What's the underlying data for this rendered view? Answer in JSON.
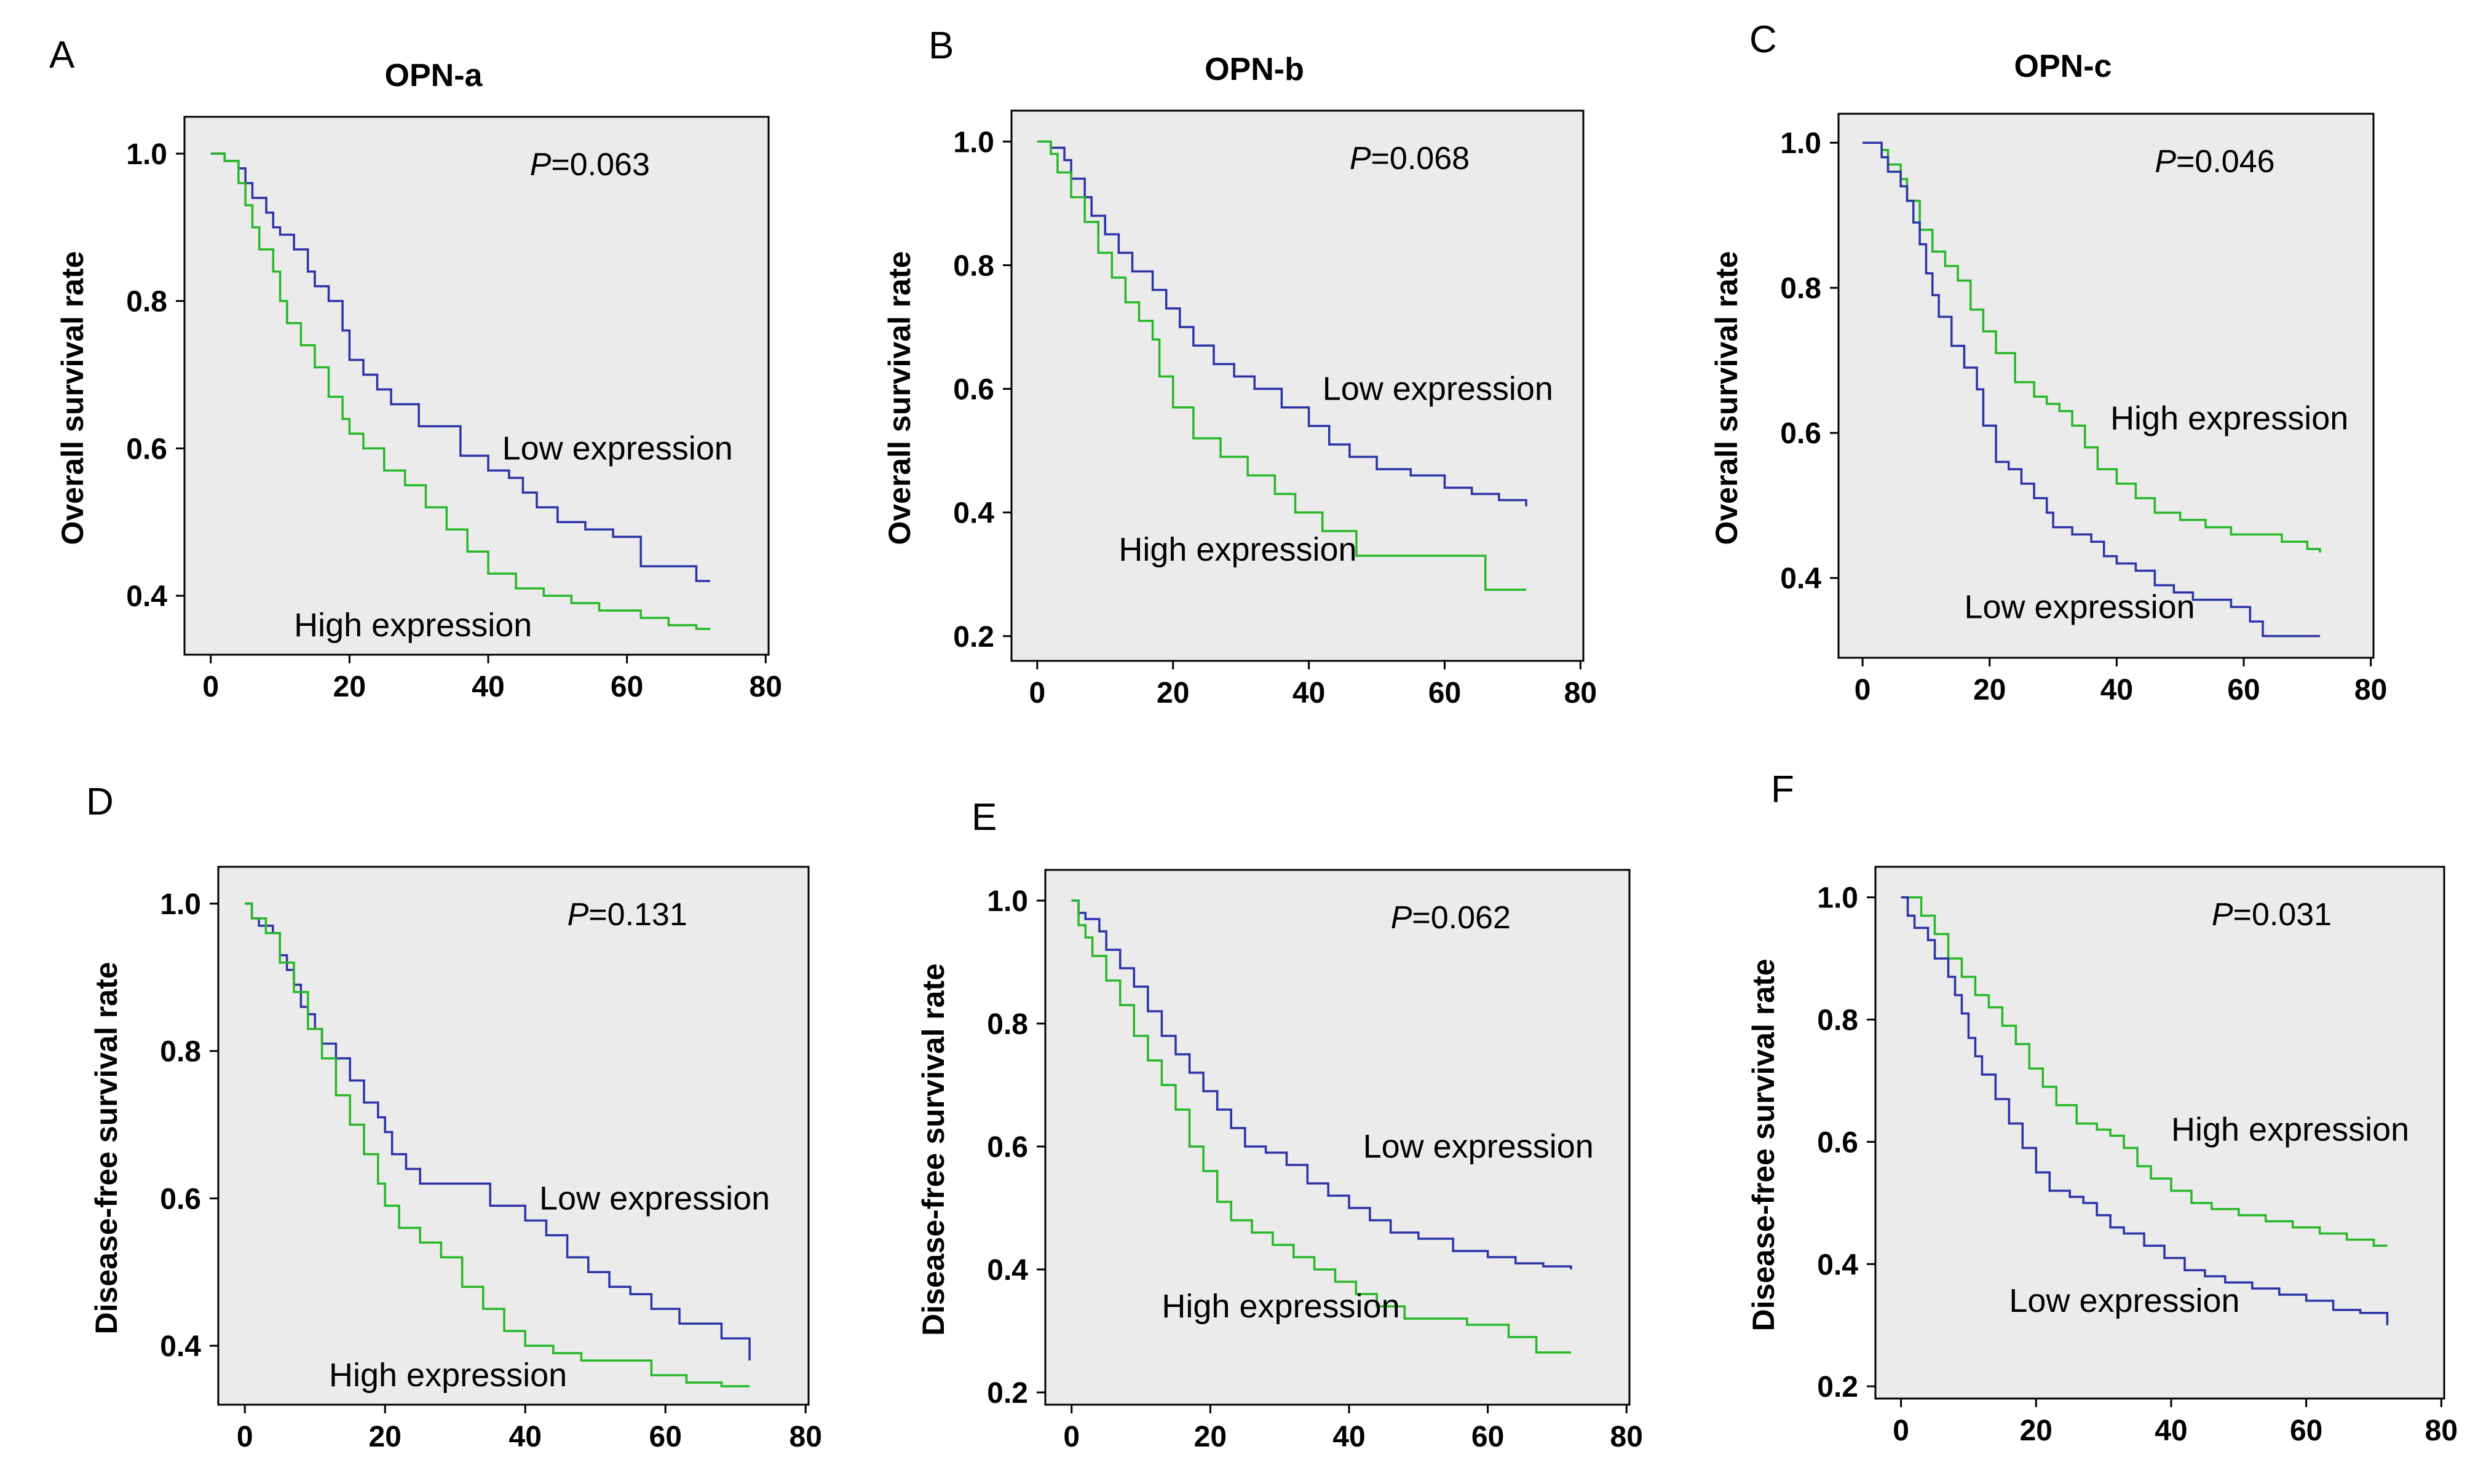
{
  "colors": {
    "low_curve": "#2a33a8",
    "high_curve": "#26b826",
    "plot_background": "#ebebeb"
  },
  "chart_data": [
    {
      "panel": "A",
      "title": "OPN-a",
      "type": "line",
      "ylabel": "Overall survival rate",
      "xlim": [
        0,
        80
      ],
      "ylim": [
        0.32,
        1.05
      ],
      "xticks": [
        "0",
        "20",
        "40",
        "60",
        "80"
      ],
      "yticks": [
        "0.4",
        "0.6",
        "0.8",
        "1.0"
      ],
      "xtick_values": [
        0,
        20,
        40,
        60,
        80
      ],
      "ytick_values": [
        0.4,
        0.6,
        0.8,
        1.0
      ],
      "p_value": "=0.063",
      "series": [
        {
          "name": "Low expression",
          "x": [
            0,
            1,
            2,
            4,
            5,
            6,
            8,
            9,
            10,
            12,
            14,
            15,
            17,
            19,
            20,
            22,
            24,
            26,
            30,
            36,
            40,
            43,
            45,
            47,
            50,
            54,
            58,
            62,
            67,
            70,
            72
          ],
          "y": [
            1.0,
            1.0,
            0.99,
            0.98,
            0.96,
            0.94,
            0.92,
            0.9,
            0.89,
            0.87,
            0.84,
            0.82,
            0.8,
            0.76,
            0.72,
            0.7,
            0.68,
            0.66,
            0.63,
            0.59,
            0.57,
            0.56,
            0.54,
            0.52,
            0.5,
            0.49,
            0.48,
            0.44,
            0.44,
            0.42,
            0.42
          ]
        },
        {
          "name": "High expression",
          "x": [
            0,
            1,
            2,
            4,
            5,
            6,
            7,
            9,
            10,
            11,
            13,
            15,
            17,
            19,
            20,
            22,
            25,
            28,
            31,
            34,
            37,
            40,
            44,
            48,
            52,
            56,
            62,
            66,
            70,
            72
          ],
          "y": [
            1.0,
            1.0,
            0.99,
            0.96,
            0.93,
            0.9,
            0.87,
            0.84,
            0.8,
            0.77,
            0.74,
            0.71,
            0.67,
            0.64,
            0.62,
            0.6,
            0.57,
            0.55,
            0.52,
            0.49,
            0.46,
            0.43,
            0.41,
            0.4,
            0.39,
            0.38,
            0.37,
            0.36,
            0.355,
            0.355
          ]
        }
      ],
      "annotations": [
        {
          "text": "Low expression",
          "x": 42,
          "y": 0.6
        },
        {
          "text": "High expression",
          "x": 12,
          "y": 0.36
        }
      ]
    },
    {
      "panel": "B",
      "title": "OPN-b",
      "type": "line",
      "ylabel": "Overall survival rate",
      "xlim": [
        0,
        80
      ],
      "ylim": [
        0.16,
        1.05
      ],
      "xticks": [
        "0",
        "20",
        "40",
        "60",
        "80"
      ],
      "yticks": [
        "0.2",
        "0.4",
        "0.6",
        "0.8",
        "1.0"
      ],
      "xtick_values": [
        0,
        20,
        40,
        60,
        80
      ],
      "ytick_values": [
        0.2,
        0.4,
        0.6,
        0.8,
        1.0
      ],
      "p_value": "=0.068",
      "series": [
        {
          "name": "Low expression",
          "x": [
            0,
            1,
            2,
            4,
            5,
            7,
            8,
            10,
            12,
            14,
            17,
            19,
            21,
            23,
            26,
            29,
            32,
            36,
            40,
            43,
            46,
            50,
            55,
            60,
            64,
            68,
            72
          ],
          "y": [
            1.0,
            1.0,
            0.99,
            0.97,
            0.94,
            0.91,
            0.88,
            0.85,
            0.82,
            0.79,
            0.76,
            0.73,
            0.7,
            0.67,
            0.64,
            0.62,
            0.6,
            0.57,
            0.54,
            0.51,
            0.49,
            0.47,
            0.46,
            0.44,
            0.43,
            0.42,
            0.41
          ]
        },
        {
          "name": "High expression",
          "x": [
            0,
            1,
            2,
            3,
            5,
            7,
            9,
            11,
            13,
            15,
            17,
            18,
            20,
            23,
            27,
            31,
            35,
            38,
            42,
            47,
            54,
            61,
            66,
            72
          ],
          "y": [
            1.0,
            1.0,
            0.98,
            0.95,
            0.91,
            0.87,
            0.82,
            0.78,
            0.74,
            0.71,
            0.68,
            0.62,
            0.57,
            0.52,
            0.49,
            0.46,
            0.43,
            0.4,
            0.37,
            0.33,
            0.33,
            0.33,
            0.275,
            0.275
          ]
        }
      ],
      "annotations": [
        {
          "text": "Low expression",
          "x": 42,
          "y": 0.6
        },
        {
          "text": "High expression",
          "x": 12,
          "y": 0.34
        }
      ]
    },
    {
      "panel": "C",
      "title": "OPN-c",
      "type": "line",
      "ylabel": "Overall survival rate",
      "xlim": [
        0,
        80
      ],
      "ylim": [
        0.29,
        1.04
      ],
      "xticks": [
        "0",
        "20",
        "40",
        "60",
        "80"
      ],
      "yticks": [
        "0.4",
        "0.6",
        "0.8",
        "1.0"
      ],
      "xtick_values": [
        0,
        20,
        40,
        60,
        80
      ],
      "ytick_values": [
        0.4,
        0.6,
        0.8,
        1.0
      ],
      "p_value": "=0.046",
      "series": [
        {
          "name": "High expression",
          "x": [
            0,
            1,
            3,
            4,
            6,
            7,
            9,
            11,
            13,
            15,
            17,
            19,
            21,
            24,
            27,
            29,
            31,
            33,
            35,
            37,
            40,
            43,
            46,
            50,
            54,
            58,
            62,
            66,
            70,
            72
          ],
          "y": [
            1.0,
            1.0,
            0.99,
            0.97,
            0.95,
            0.92,
            0.88,
            0.85,
            0.83,
            0.81,
            0.77,
            0.74,
            0.71,
            0.67,
            0.65,
            0.64,
            0.63,
            0.61,
            0.58,
            0.55,
            0.53,
            0.51,
            0.49,
            0.48,
            0.47,
            0.46,
            0.46,
            0.45,
            0.44,
            0.435
          ]
        },
        {
          "name": "Low expression",
          "x": [
            0,
            1,
            3,
            4,
            6,
            7,
            8,
            9,
            10,
            11,
            12,
            14,
            16,
            18,
            19,
            21,
            23,
            25,
            27,
            29,
            30,
            33,
            36,
            38,
            40,
            43,
            46,
            49,
            52,
            55,
            58,
            61,
            63,
            66,
            70,
            72
          ],
          "y": [
            1.0,
            1.0,
            0.98,
            0.96,
            0.94,
            0.92,
            0.89,
            0.86,
            0.82,
            0.79,
            0.76,
            0.72,
            0.69,
            0.66,
            0.61,
            0.56,
            0.55,
            0.53,
            0.51,
            0.49,
            0.47,
            0.46,
            0.45,
            0.43,
            0.42,
            0.41,
            0.39,
            0.38,
            0.37,
            0.37,
            0.36,
            0.34,
            0.32,
            0.32,
            0.32,
            0.32
          ]
        }
      ],
      "annotations": [
        {
          "text": "High expression",
          "x": 39,
          "y": 0.62
        },
        {
          "text": "Low expression",
          "x": 16,
          "y": 0.36
        }
      ]
    },
    {
      "panel": "D",
      "type": "line",
      "ylabel": "Disease-free survival rate",
      "xlim": [
        0,
        80
      ],
      "ylim": [
        0.32,
        1.05
      ],
      "xticks": [
        "0",
        "20",
        "40",
        "60",
        "80"
      ],
      "yticks": [
        "0.4",
        "0.6",
        "0.8",
        "1.0"
      ],
      "xtick_values": [
        0,
        20,
        40,
        60,
        80
      ],
      "ytick_values": [
        0.4,
        0.6,
        0.8,
        1.0
      ],
      "p_value": "=0.131",
      "series": [
        {
          "name": "Low expression",
          "x": [
            0,
            1,
            2,
            4,
            5,
            6,
            7,
            8,
            9,
            10,
            11,
            12,
            13,
            15,
            17,
            19,
            20,
            21,
            23,
            25,
            30,
            35,
            40,
            43,
            46,
            49,
            52,
            55,
            58,
            62,
            68,
            72
          ],
          "y": [
            1.0,
            0.98,
            0.97,
            0.96,
            0.93,
            0.91,
            0.89,
            0.86,
            0.85,
            0.83,
            0.81,
            0.81,
            0.79,
            0.76,
            0.73,
            0.71,
            0.69,
            0.66,
            0.64,
            0.62,
            0.62,
            0.59,
            0.57,
            0.55,
            0.52,
            0.5,
            0.48,
            0.47,
            0.45,
            0.43,
            0.41,
            0.38
          ]
        },
        {
          "name": "High expression",
          "x": [
            0,
            1,
            3,
            5,
            7,
            9,
            11,
            13,
            15,
            17,
            19,
            20,
            22,
            25,
            28,
            31,
            34,
            37,
            40,
            44,
            48,
            52,
            58,
            63,
            68,
            72
          ],
          "y": [
            1.0,
            0.98,
            0.96,
            0.92,
            0.88,
            0.83,
            0.79,
            0.74,
            0.7,
            0.66,
            0.62,
            0.59,
            0.56,
            0.54,
            0.52,
            0.48,
            0.45,
            0.42,
            0.4,
            0.39,
            0.38,
            0.38,
            0.36,
            0.35,
            0.345,
            0.345
          ]
        }
      ],
      "annotations": [
        {
          "text": "Low expression",
          "x": 42,
          "y": 0.6
        },
        {
          "text": "High expression",
          "x": 12,
          "y": 0.36
        }
      ]
    },
    {
      "panel": "E",
      "type": "line",
      "ylabel": "Disease-free survival rate",
      "xlim": [
        0,
        80
      ],
      "ylim": [
        0.18,
        1.05
      ],
      "xticks": [
        "0",
        "20",
        "40",
        "60",
        "80"
      ],
      "yticks": [
        "0.2",
        "0.4",
        "0.6",
        "0.8",
        "1.0"
      ],
      "xtick_values": [
        0,
        20,
        40,
        60,
        80
      ],
      "ytick_values": [
        0.2,
        0.4,
        0.6,
        0.8,
        1.0
      ],
      "p_value": "=0.062",
      "series": [
        {
          "name": "Low expression",
          "x": [
            0,
            1,
            2,
            4,
            5,
            7,
            9,
            11,
            13,
            15,
            17,
            19,
            21,
            23,
            25,
            28,
            31,
            34,
            37,
            40,
            43,
            46,
            50,
            55,
            60,
            64,
            68,
            72
          ],
          "y": [
            1.0,
            0.98,
            0.97,
            0.95,
            0.92,
            0.89,
            0.86,
            0.82,
            0.78,
            0.75,
            0.72,
            0.69,
            0.66,
            0.63,
            0.6,
            0.59,
            0.57,
            0.54,
            0.52,
            0.5,
            0.48,
            0.46,
            0.45,
            0.43,
            0.42,
            0.41,
            0.405,
            0.4
          ]
        },
        {
          "name": "High expression",
          "x": [
            0,
            1,
            2,
            3,
            5,
            7,
            9,
            11,
            13,
            15,
            17,
            19,
            21,
            23,
            26,
            29,
            32,
            35,
            38,
            41,
            44,
            48,
            52,
            57,
            63,
            67,
            72
          ],
          "y": [
            1.0,
            0.96,
            0.94,
            0.91,
            0.87,
            0.83,
            0.78,
            0.74,
            0.7,
            0.66,
            0.6,
            0.56,
            0.51,
            0.48,
            0.46,
            0.44,
            0.42,
            0.4,
            0.38,
            0.36,
            0.34,
            0.32,
            0.32,
            0.31,
            0.29,
            0.265,
            0.265
          ]
        }
      ],
      "annotations": [
        {
          "text": "Low expression",
          "x": 42,
          "y": 0.6
        },
        {
          "text": "High expression",
          "x": 13,
          "y": 0.34
        }
      ]
    },
    {
      "panel": "F",
      "type": "line",
      "ylabel": "Disease-free survival rate",
      "xlim": [
        0,
        80
      ],
      "ylim": [
        0.18,
        1.05
      ],
      "xticks": [
        "0",
        "20",
        "40",
        "60",
        "80"
      ],
      "yticks": [
        "0.2",
        "0.4",
        "0.6",
        "0.8",
        "1.0"
      ],
      "xtick_values": [
        0,
        20,
        40,
        60,
        80
      ],
      "ytick_values": [
        0.2,
        0.4,
        0.6,
        0.8,
        1.0
      ],
      "p_value": "=0.031",
      "series": [
        {
          "name": "High expression",
          "x": [
            0,
            1,
            3,
            5,
            7,
            9,
            11,
            13,
            15,
            17,
            19,
            21,
            23,
            26,
            29,
            31,
            33,
            35,
            37,
            40,
            43,
            46,
            50,
            54,
            58,
            62,
            66,
            70,
            72
          ],
          "y": [
            1.0,
            1.0,
            0.97,
            0.94,
            0.9,
            0.87,
            0.84,
            0.82,
            0.79,
            0.76,
            0.72,
            0.69,
            0.66,
            0.63,
            0.62,
            0.61,
            0.59,
            0.56,
            0.54,
            0.52,
            0.5,
            0.49,
            0.48,
            0.47,
            0.46,
            0.45,
            0.44,
            0.43,
            0.43
          ]
        },
        {
          "name": "Low expression",
          "x": [
            0,
            1,
            2,
            4,
            5,
            7,
            8,
            9,
            10,
            11,
            12,
            14,
            16,
            18,
            20,
            22,
            25,
            27,
            29,
            31,
            33,
            36,
            39,
            42,
            45,
            48,
            52,
            56,
            60,
            64,
            68,
            72
          ],
          "y": [
            1.0,
            0.97,
            0.95,
            0.93,
            0.9,
            0.87,
            0.84,
            0.81,
            0.77,
            0.74,
            0.71,
            0.67,
            0.63,
            0.59,
            0.55,
            0.52,
            0.51,
            0.5,
            0.48,
            0.46,
            0.45,
            0.43,
            0.41,
            0.39,
            0.38,
            0.37,
            0.36,
            0.35,
            0.34,
            0.325,
            0.32,
            0.3
          ]
        }
      ],
      "annotations": [
        {
          "text": "High expression",
          "x": 40,
          "y": 0.62
        },
        {
          "text": "Low expression",
          "x": 16,
          "y": 0.34
        }
      ]
    }
  ]
}
